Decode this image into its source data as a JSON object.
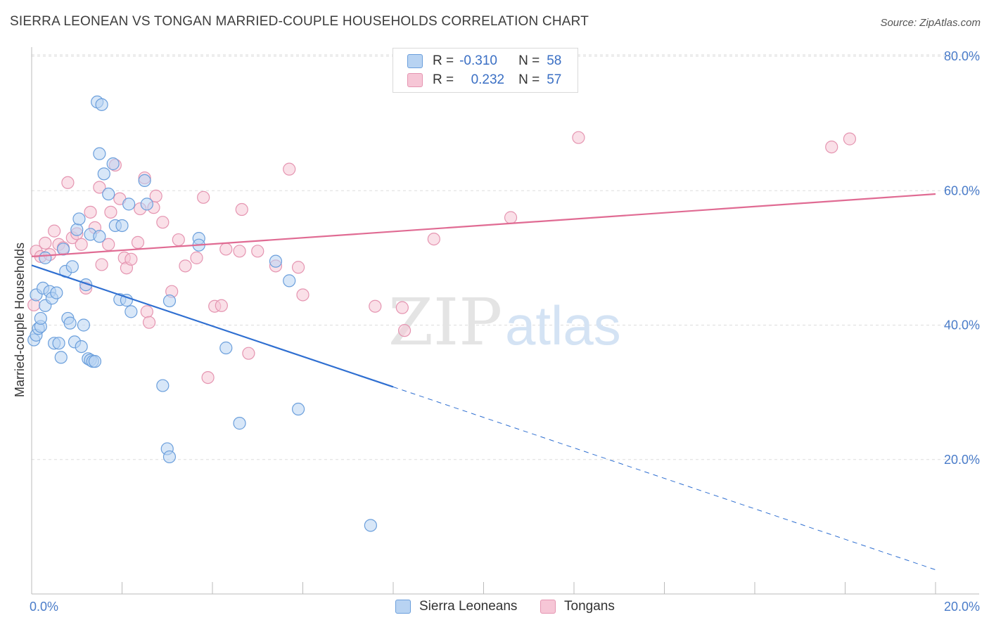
{
  "title": "SIERRA LEONEAN VS TONGAN MARRIED-COUPLE HOUSEHOLDS CORRELATION CHART",
  "source": "Source: ZipAtlas.com",
  "watermark": {
    "zip": "ZIP",
    "atlas": "atlas"
  },
  "legend": {
    "r_label": "R =",
    "n_label": "N =",
    "rows": [
      {
        "r": "-0.310",
        "n": "58"
      },
      {
        "r": "0.232",
        "n": "57"
      }
    ]
  },
  "colors": {
    "blue_fill": "#b8d3f2",
    "blue_stroke": "#6b9fdc",
    "blue_line": "#2f6fd1",
    "pink_fill": "#f6c6d6",
    "pink_stroke": "#e595b1",
    "pink_line": "#e06b93",
    "grid": "#dddddd"
  },
  "chart_data": {
    "type": "scatter",
    "title": "SIERRA LEONEAN VS TONGAN MARRIED-COUPLE HOUSEHOLDS CORRELATION CHART",
    "xlabel": "",
    "ylabel": "Married-couple Households",
    "xlim": [
      0,
      20
    ],
    "ylim": [
      0,
      80
    ],
    "x_tick_labels": [
      "0.0%",
      "20.0%"
    ],
    "y_ticks": [
      20,
      40,
      60,
      80
    ],
    "y_tick_labels": [
      "20.0%",
      "40.0%",
      "60.0%",
      "80.0%"
    ],
    "series": [
      {
        "name": "Sierra Leoneans",
        "r": -0.31,
        "n": 58,
        "trend": {
          "x_start": 0,
          "y_start": 48.9,
          "x_solid_end": 8,
          "y_solid_end": 30.8,
          "x_end": 20,
          "y_end": 3.6
        },
        "points": [
          [
            0.05,
            37.8
          ],
          [
            0.1,
            38.5
          ],
          [
            0.15,
            39.5
          ],
          [
            0.2,
            39.8
          ],
          [
            0.1,
            44.5
          ],
          [
            0.25,
            45.5
          ],
          [
            0.3,
            42.9
          ],
          [
            0.4,
            45.0
          ],
          [
            0.45,
            44.0
          ],
          [
            0.5,
            37.3
          ],
          [
            0.55,
            44.8
          ],
          [
            0.6,
            37.3
          ],
          [
            0.65,
            35.2
          ],
          [
            0.7,
            51.3
          ],
          [
            0.75,
            48.0
          ],
          [
            0.8,
            41.0
          ],
          [
            0.85,
            40.3
          ],
          [
            0.9,
            48.7
          ],
          [
            0.95,
            37.5
          ],
          [
            1.0,
            54.2
          ],
          [
            1.05,
            55.8
          ],
          [
            1.1,
            36.8
          ],
          [
            1.15,
            40.0
          ],
          [
            1.2,
            46.0
          ],
          [
            1.25,
            35.0
          ],
          [
            1.3,
            53.5
          ],
          [
            1.3,
            34.8
          ],
          [
            1.35,
            34.6
          ],
          [
            1.4,
            34.6
          ],
          [
            1.5,
            53.2
          ],
          [
            1.5,
            65.5
          ],
          [
            1.45,
            73.2
          ],
          [
            1.55,
            72.8
          ],
          [
            1.6,
            62.5
          ],
          [
            1.7,
            59.5
          ],
          [
            1.8,
            64.0
          ],
          [
            1.85,
            54.8
          ],
          [
            2.0,
            54.8
          ],
          [
            1.95,
            43.8
          ],
          [
            2.2,
            42.0
          ],
          [
            2.1,
            43.7
          ],
          [
            2.15,
            58.0
          ],
          [
            2.5,
            61.5
          ],
          [
            2.55,
            58.0
          ],
          [
            2.9,
            31.0
          ],
          [
            3.05,
            43.6
          ],
          [
            3.0,
            21.6
          ],
          [
            3.05,
            20.4
          ],
          [
            3.7,
            52.9
          ],
          [
            3.7,
            51.9
          ],
          [
            4.3,
            36.6
          ],
          [
            4.6,
            25.4
          ],
          [
            5.4,
            49.5
          ],
          [
            5.7,
            46.6
          ],
          [
            5.9,
            27.5
          ],
          [
            7.5,
            10.2
          ],
          [
            0.2,
            41.0
          ],
          [
            0.3,
            50.0
          ]
        ]
      },
      {
        "name": "Tongans",
        "r": 0.232,
        "n": 57,
        "trend": {
          "x_start": 0,
          "y_start": 50.2,
          "x_end": 20,
          "y_end": 59.5
        },
        "points": [
          [
            0.05,
            43.0
          ],
          [
            0.1,
            51.0
          ],
          [
            0.2,
            50.2
          ],
          [
            0.3,
            52.2
          ],
          [
            0.4,
            50.5
          ],
          [
            0.5,
            54.0
          ],
          [
            0.6,
            52.0
          ],
          [
            0.7,
            51.5
          ],
          [
            0.8,
            61.2
          ],
          [
            0.9,
            53.0
          ],
          [
            1.0,
            53.6
          ],
          [
            1.1,
            52.0
          ],
          [
            1.2,
            45.5
          ],
          [
            1.3,
            56.8
          ],
          [
            1.4,
            54.5
          ],
          [
            1.5,
            60.5
          ],
          [
            1.55,
            49.0
          ],
          [
            1.7,
            52.0
          ],
          [
            1.75,
            56.8
          ],
          [
            1.85,
            63.8
          ],
          [
            1.95,
            58.8
          ],
          [
            2.05,
            50.0
          ],
          [
            2.1,
            48.5
          ],
          [
            2.2,
            49.8
          ],
          [
            2.35,
            52.3
          ],
          [
            2.4,
            57.3
          ],
          [
            2.5,
            61.9
          ],
          [
            2.55,
            42.0
          ],
          [
            2.6,
            40.4
          ],
          [
            2.7,
            57.5
          ],
          [
            2.75,
            59.2
          ],
          [
            2.9,
            55.3
          ],
          [
            3.1,
            45.0
          ],
          [
            3.25,
            52.7
          ],
          [
            3.4,
            48.8
          ],
          [
            3.65,
            50.0
          ],
          [
            3.8,
            59.0
          ],
          [
            3.9,
            32.2
          ],
          [
            4.05,
            42.8
          ],
          [
            4.2,
            42.9
          ],
          [
            4.3,
            51.3
          ],
          [
            4.6,
            51.0
          ],
          [
            4.65,
            57.2
          ],
          [
            4.8,
            35.8
          ],
          [
            5.0,
            51.0
          ],
          [
            5.4,
            48.8
          ],
          [
            5.7,
            63.2
          ],
          [
            5.9,
            48.6
          ],
          [
            6.0,
            44.5
          ],
          [
            7.6,
            42.8
          ],
          [
            8.2,
            42.6
          ],
          [
            8.25,
            39.2
          ],
          [
            8.9,
            52.8
          ],
          [
            10.6,
            56.0
          ],
          [
            12.1,
            67.9
          ],
          [
            17.7,
            66.5
          ],
          [
            18.1,
            67.7
          ]
        ]
      }
    ]
  },
  "bottom_legend": [
    "Sierra Leoneans",
    "Tongans"
  ]
}
